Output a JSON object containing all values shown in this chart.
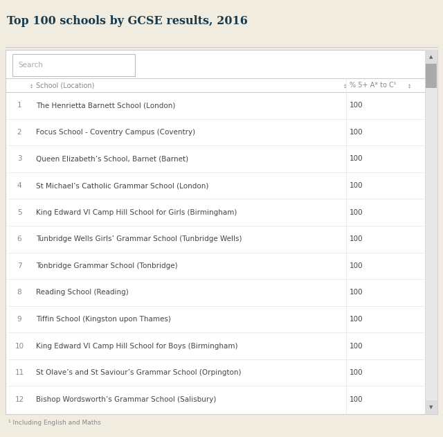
{
  "title": "Top 100 schools by GCSE results, 2016",
  "background_color": "#f0ece0",
  "table_background": "#ffffff",
  "border_color": "#cccccc",
  "title_color": "#1a3a4a",
  "header_color": "#888888",
  "search_placeholder": "Search",
  "search_box_color": "#ffffff",
  "search_border_color": "#bbbbbb",
  "footnote": "¹ Including English and Maths",
  "rows": [
    [
      1,
      "The Henrietta Barnett School (London)",
      100
    ],
    [
      2,
      "Focus School - Coventry Campus (Coventry)",
      100
    ],
    [
      3,
      "Queen Elizabeth’s School, Barnet (Barnet)",
      100
    ],
    [
      4,
      "St Michael’s Catholic Grammar School (London)",
      100
    ],
    [
      5,
      "King Edward VI Camp Hill School for Girls (Birmingham)",
      100
    ],
    [
      6,
      "Tunbridge Wells Girls’ Grammar School (Tunbridge Wells)",
      100
    ],
    [
      7,
      "Tonbridge Grammar School (Tonbridge)",
      100
    ],
    [
      8,
      "Reading School (Reading)",
      100
    ],
    [
      9,
      "Tiffin School (Kingston upon Thames)",
      100
    ],
    [
      10,
      "King Edward VI Camp Hill School for Boys (Birmingham)",
      100
    ],
    [
      11,
      "St Olave’s and St Saviour’s Grammar School (Orpington)",
      100
    ],
    [
      12,
      "Bishop Wordsworth’s Grammar School (Salisbury)",
      100
    ]
  ],
  "font_size_title": 11.5,
  "font_size_header": 7,
  "font_size_row": 7.5,
  "font_size_footnote": 6.5,
  "font_size_search": 7.5,
  "scrollbar_bg": "#e8e8e8",
  "scrollbar_thumb": "#aaaaaa",
  "line_color": "#e8e8e8",
  "header_line_color": "#cccccc",
  "title_line_color": "#cccccc",
  "row_text_color": "#444444",
  "rank_text_color": "#888888",
  "score_text_color": "#444444"
}
